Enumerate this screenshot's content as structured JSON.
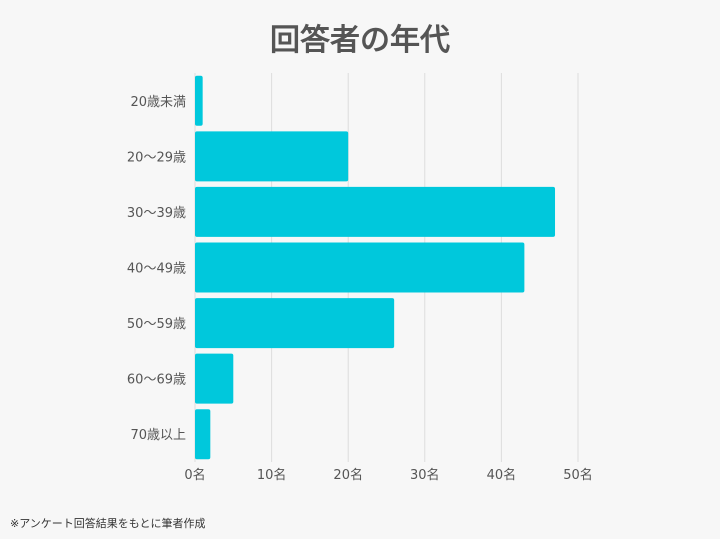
{
  "chart_data": {
    "type": "bar",
    "orientation": "horizontal",
    "title": "回答者の年代",
    "categories": [
      "20歳未満",
      "20～29歳",
      "30～39歳",
      "40～49歳",
      "50～59歳",
      "60～69歳",
      "70歳以上"
    ],
    "values": [
      1,
      20,
      47,
      43,
      26,
      5,
      2
    ],
    "xlim": [
      0,
      50
    ],
    "xticks": [
      0,
      10,
      20,
      30,
      40,
      50
    ],
    "xtick_labels": [
      "0名",
      "10名",
      "20名",
      "30名",
      "40名",
      "50名"
    ],
    "xlabel": "",
    "ylabel": "",
    "grid": true,
    "bar_color": "#00c8dc",
    "footnote": "※アンケート回答結果をもとに筆者作成"
  }
}
